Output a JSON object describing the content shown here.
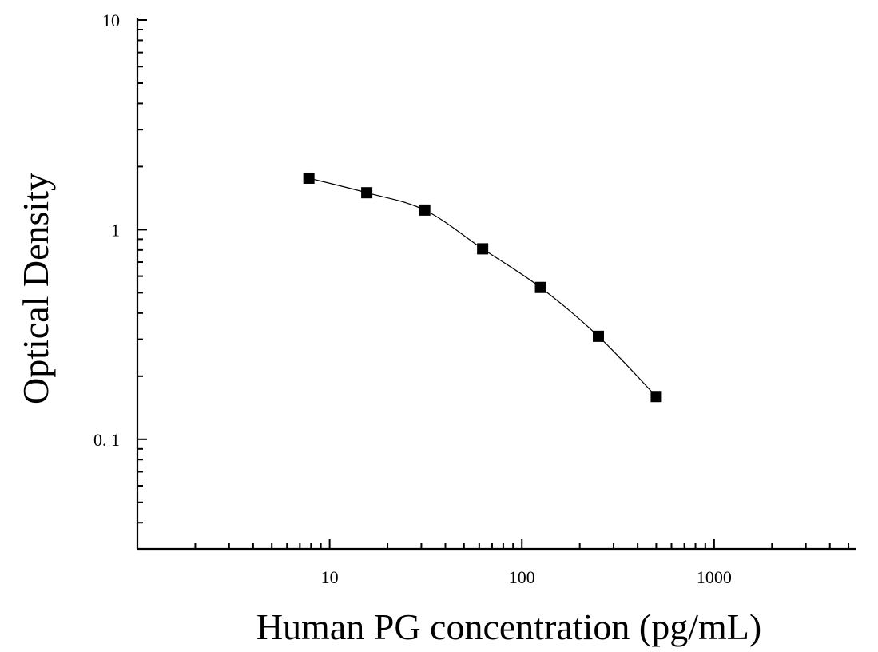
{
  "chart_data": {
    "type": "scatter",
    "title": "",
    "xlabel": "Human PG concentration (pg/mL)",
    "ylabel": "Optical Density",
    "x_scale": "log",
    "y_scale": "log",
    "xlim": [
      1,
      5500
    ],
    "ylim": [
      0.03,
      10
    ],
    "x_ticks": [
      {
        "value": 10,
        "label": "10"
      },
      {
        "value": 100,
        "label": "100"
      },
      {
        "value": 1000,
        "label": "1000"
      }
    ],
    "y_ticks": [
      {
        "value": 10,
        "label": "10"
      },
      {
        "value": 1,
        "label": "1"
      },
      {
        "value": 0.1,
        "label": "0. 1"
      }
    ],
    "grid": false,
    "legend": "none",
    "marker": "square",
    "colors": {
      "marker": "#000000",
      "line": "#000000",
      "axis": "#000000"
    },
    "series": [
      {
        "x": [
          7.8,
          15.6,
          31.25,
          62.5,
          125,
          250,
          500
        ],
        "y": [
          1.76,
          1.5,
          1.24,
          0.81,
          0.53,
          0.31,
          0.16
        ]
      }
    ]
  }
}
